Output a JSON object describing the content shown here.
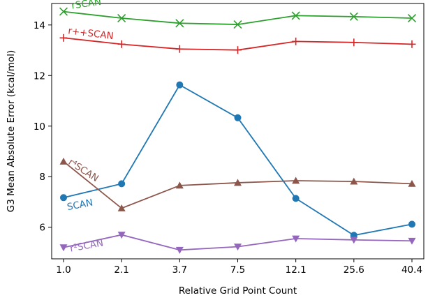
{
  "chart_data": {
    "type": "line",
    "title": "",
    "xlabel": "Relative Grid Point Count",
    "ylabel": "G3 Mean Absolute Error (kcal/mol)",
    "categories": [
      "1.0",
      "2.1",
      "3.7",
      "7.5",
      "12.1",
      "25.6",
      "40.4"
    ],
    "yticks": [
      "6",
      "8",
      "10",
      "12",
      "14"
    ],
    "ylim": [
      4.75,
      14.85
    ],
    "grid": false,
    "legend": "none",
    "series": [
      {
        "name": "rSCAN",
        "color": "#2ca02c",
        "marker": "x",
        "values": [
          14.53,
          14.27,
          14.07,
          14.02,
          14.37,
          14.33,
          14.27
        ]
      },
      {
        "name": "r++SCAN",
        "color": "#d62728",
        "marker": "plus",
        "values": [
          13.49,
          13.24,
          13.05,
          13.01,
          13.35,
          13.31,
          13.24
        ]
      },
      {
        "name": "SCAN",
        "color": "#1f77b4",
        "marker": "circle",
        "values": [
          7.17,
          7.72,
          11.63,
          10.33,
          7.14,
          5.68,
          6.12
        ]
      },
      {
        "name": "r⁴SCAN",
        "color": "#8c564b",
        "marker": "triangle-up",
        "values": [
          8.6,
          6.75,
          7.65,
          7.76,
          7.84,
          7.81,
          7.72
        ]
      },
      {
        "name": "r²SCAN",
        "color": "#9467bd",
        "marker": "triangle-down",
        "values": [
          5.2,
          5.7,
          5.1,
          5.23,
          5.55,
          5.5,
          5.46
        ]
      }
    ]
  }
}
